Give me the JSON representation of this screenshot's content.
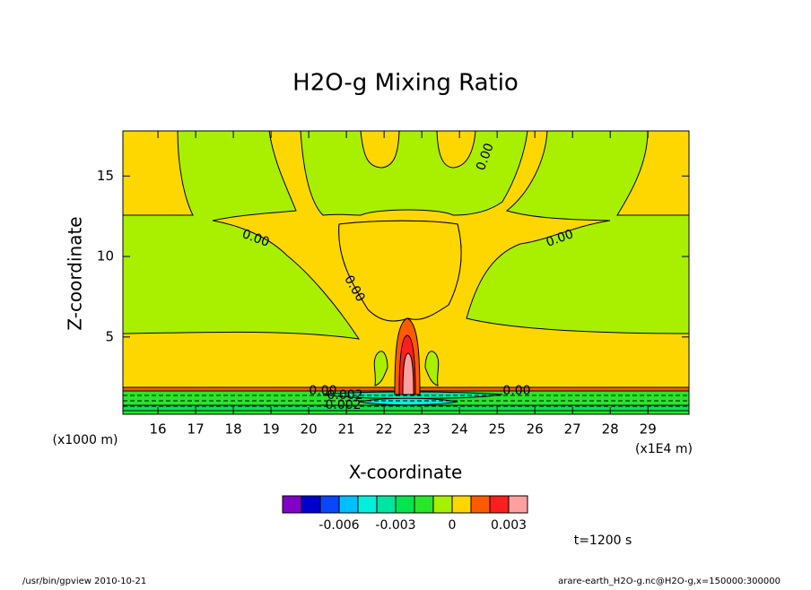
{
  "chart_data": {
    "type": "contour",
    "title": "H2O-g Mixing Ratio",
    "x_label": "X-coordinate",
    "y_label": "Z-coordinate",
    "x_unit": "(x1E4 m)",
    "y_unit": "(x1000 m)",
    "xlim": [
      15.07,
      30.09
    ],
    "ylim": [
      0.2,
      17.8
    ],
    "xticks": [
      16,
      17,
      18,
      19,
      20,
      21,
      22,
      23,
      24,
      25,
      26,
      27,
      28,
      29
    ],
    "yticks": [
      5,
      10,
      15
    ],
    "colorbar": {
      "lim": [
        -0.009,
        0.004
      ],
      "ticks": [
        -0.006,
        -0.003,
        0,
        0.003
      ],
      "colors": [
        "#8200c8",
        "#0000cd",
        "#0a46ff",
        "#00beff",
        "#00f0dc",
        "#00e6a0",
        "#00e650",
        "#28e628",
        "#a8f000",
        "#ffd700",
        "#ff5a00",
        "#ff1e1e",
        "#ffa0a0"
      ]
    },
    "contour_labels": [
      "0.00",
      "0.00",
      "0.00",
      "0.00",
      "0.00",
      "0.00",
      "-0.002",
      "-0.002"
    ],
    "time_label": "t=1200 s",
    "footer_left": "/usr/bin/gpview   2010-10-21",
    "footer_right": "arare-earth_H2O-g.nc@H2O-g,x=150000:300000"
  }
}
